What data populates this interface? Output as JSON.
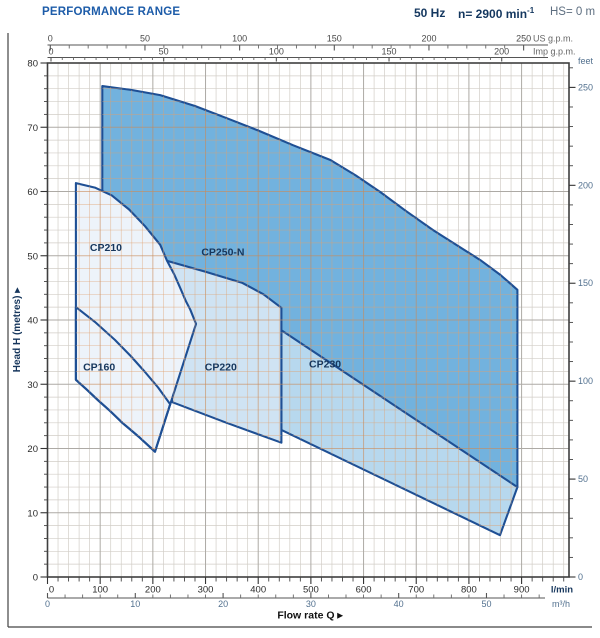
{
  "header": {
    "title": "PERFORMANCE RANGE",
    "frequency": "50 Hz",
    "speed_prefix": "n= 2900 min",
    "speed_sup": "-1",
    "suction": "HS= 0 m"
  },
  "colors": {
    "title_blue": "#1d5ca9",
    "header_navy": "#14375f",
    "suction_gray": "#5d6e80",
    "region_stroke": "#1e4f94",
    "fill_cp250n": "#72b2de",
    "fill_cp230": "#b7d8ee",
    "fill_cp220": "#cfe3f3",
    "fill_cp210": "#edf3fa",
    "grid_minor": "#d2cec7",
    "grid_major": "#adaaa5",
    "grid_tan_minor": "rgba(224,160,110,0.55)",
    "grid_tan_major": "rgba(201,138,88,0.60)",
    "frame": "#3f3f3f",
    "axis_text": "#2b2b2b",
    "secondary_axis_text": "#53718f",
    "unit_navy": "#16365c",
    "gpm_text": "#4a4a4a"
  },
  "chart_data": {
    "type": "area",
    "title": "PERFORMANCE RANGE",
    "grid": "on",
    "x_axes": [
      {
        "id": "lmin",
        "unit": "l/min",
        "range": [
          0,
          990
        ],
        "tick_labels": [
          0,
          100,
          200,
          300,
          400,
          500,
          600,
          700,
          800,
          900
        ],
        "minor_step": 20
      },
      {
        "id": "m3h",
        "unit": "m³/h",
        "range": [
          0,
          56
        ],
        "tick_labels": [
          0,
          10,
          20,
          30,
          40,
          50
        ],
        "minor_step": 2
      },
      {
        "id": "usgpm",
        "unit": "US g.p.m.",
        "range": [
          0,
          250
        ],
        "tick_labels": [
          0,
          50,
          100,
          150,
          200,
          250
        ],
        "minor_step": 10
      },
      {
        "id": "impgpm",
        "unit": "Imp g.p.m.",
        "range": [
          0,
          200
        ],
        "tick_labels": [
          0,
          50,
          100,
          150,
          200
        ],
        "minor_step": 5
      }
    ],
    "y_axes": [
      {
        "id": "head_m",
        "unit": "Head H (metres)",
        "range": [
          0,
          80
        ],
        "tick_labels": [
          0,
          10,
          20,
          30,
          40,
          50,
          60,
          70,
          80
        ],
        "minor_step": 2
      },
      {
        "id": "feet",
        "unit": "feet",
        "range": [
          0,
          262
        ],
        "tick_labels": [
          0,
          50,
          100,
          150,
          200,
          250
        ],
        "minor_step": 10
      }
    ],
    "flow_axis_title": "Flow rate Q",
    "head_axis_title": "Head H (metres)",
    "series": [
      {
        "name": "CP250-N",
        "fill_key": "fill_cp250n",
        "label_Q": 333,
        "label_H": 50.7,
        "points": [
          [
            104,
            76.4
          ],
          [
            160,
            75.8
          ],
          [
            214,
            75.0
          ],
          [
            280,
            73.3
          ],
          [
            341,
            71.4
          ],
          [
            400,
            69.5
          ],
          [
            466,
            67.2
          ],
          [
            537,
            64.9
          ],
          [
            585,
            62.5
          ],
          [
            632,
            59.9
          ],
          [
            680,
            57.0
          ],
          [
            732,
            54.0
          ],
          [
            778,
            51.6
          ],
          [
            822,
            49.3
          ],
          [
            860,
            47.0
          ],
          [
            892,
            44.7
          ],
          [
            892,
            14.0
          ],
          [
            765,
            16.7
          ],
          [
            575,
            22.9
          ],
          [
            445,
            28.3
          ],
          [
            290,
            29.1
          ],
          [
            157,
            29.1
          ],
          [
            104,
            29.9
          ]
        ]
      },
      {
        "name": "CP230",
        "fill_key": "fill_cp230",
        "label_Q": 527,
        "label_H": 33.2,
        "points": [
          [
            444,
            38.4
          ],
          [
            892,
            14.0
          ],
          [
            859,
            6.5
          ],
          [
            444,
            22.9
          ]
        ]
      },
      {
        "name": "CP220",
        "fill_key": "fill_cp220",
        "label_Q": 329,
        "label_H": 32.8,
        "points": [
          [
            195,
            50.4
          ],
          [
            227,
            49.2
          ],
          [
            300,
            47.5
          ],
          [
            369,
            45.8
          ],
          [
            410,
            44.0
          ],
          [
            444,
            41.9
          ],
          [
            444,
            20.9
          ],
          [
            340,
            24.0
          ],
          [
            237,
            27.2
          ]
        ]
      },
      {
        "name": "CP210",
        "fill_key": "fill_cp210",
        "label_Q": 111,
        "label_H": 51.4,
        "points": [
          [
            54,
            61.3
          ],
          [
            90,
            60.6
          ],
          [
            122,
            59.4
          ],
          [
            155,
            57.2
          ],
          [
            185,
            54.6
          ],
          [
            214,
            51.7
          ],
          [
            227,
            49.2
          ],
          [
            240,
            47.2
          ],
          [
            252,
            45.0
          ],
          [
            263,
            42.9
          ],
          [
            271,
            41.6
          ],
          [
            282,
            39.4
          ],
          [
            204,
            19.5
          ],
          [
            175,
            21.7
          ],
          [
            142,
            24.0
          ],
          [
            118,
            25.9
          ],
          [
            96,
            27.5
          ],
          [
            74,
            29.2
          ],
          [
            54,
            30.7
          ]
        ]
      },
      {
        "name": "CP160",
        "fill_key": "none",
        "label_Q": 98,
        "label_H": 32.8,
        "points": [
          [
            54,
            42.0
          ],
          [
            90,
            39.7
          ],
          [
            128,
            36.9
          ],
          [
            158,
            34.4
          ],
          [
            185,
            31.9
          ],
          [
            210,
            29.5
          ],
          [
            233,
            26.9
          ],
          [
            204,
            19.5
          ],
          [
            175,
            21.7
          ],
          [
            142,
            24.0
          ],
          [
            118,
            25.9
          ],
          [
            96,
            27.5
          ],
          [
            74,
            29.2
          ],
          [
            54,
            30.7
          ]
        ]
      }
    ]
  }
}
